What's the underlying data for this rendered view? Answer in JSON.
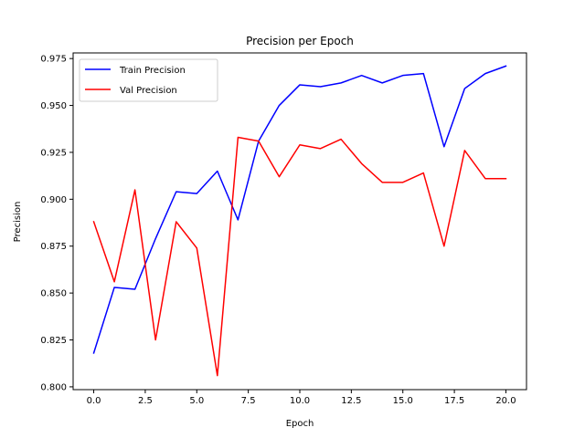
{
  "chart_data": {
    "type": "line",
    "title": "Precision per Epoch",
    "xlabel": "Epoch",
    "ylabel": "Precision",
    "xlim": [
      -1,
      21
    ],
    "ylim": [
      0.7985,
      0.978
    ],
    "x_ticks": [
      0.0,
      2.5,
      5.0,
      7.5,
      10.0,
      12.5,
      15.0,
      17.5,
      20.0
    ],
    "x_tick_labels": [
      "0.0",
      "2.5",
      "5.0",
      "7.5",
      "10.0",
      "12.5",
      "15.0",
      "17.5",
      "20.0"
    ],
    "y_ticks": [
      0.8,
      0.825,
      0.85,
      0.875,
      0.9,
      0.925,
      0.95,
      0.975
    ],
    "y_tick_labels": [
      "0.800",
      "0.825",
      "0.850",
      "0.875",
      "0.900",
      "0.925",
      "0.950",
      "0.975"
    ],
    "grid": false,
    "legend_position": "top-left",
    "x": [
      0,
      1,
      2,
      3,
      4,
      5,
      6,
      7,
      8,
      9,
      10,
      11,
      12,
      13,
      14,
      15,
      16,
      17,
      18,
      19,
      20
    ],
    "series": [
      {
        "name": "Train Precision",
        "color": "#0000ff",
        "values": [
          0.818,
          0.853,
          0.852,
          0.879,
          0.904,
          0.903,
          0.915,
          0.889,
          0.931,
          0.95,
          0.961,
          0.96,
          0.962,
          0.966,
          0.962,
          0.966,
          0.967,
          0.928,
          0.959,
          0.967,
          0.971
        ]
      },
      {
        "name": "Val Precision",
        "color": "#ff0000",
        "values": [
          0.888,
          0.856,
          0.905,
          0.825,
          0.888,
          0.874,
          0.806,
          0.933,
          0.931,
          0.912,
          0.929,
          0.927,
          0.932,
          0.919,
          0.909,
          0.909,
          0.914,
          0.875,
          0.926,
          0.911,
          0.911
        ]
      }
    ]
  }
}
